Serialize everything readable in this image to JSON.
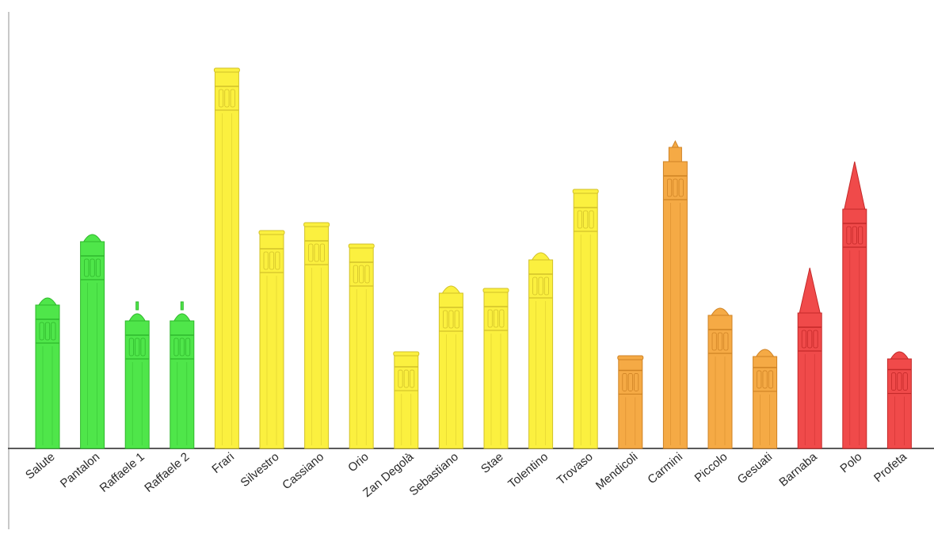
{
  "chart_data": {
    "type": "bar",
    "title": "",
    "xlabel": "",
    "ylabel": "",
    "categories": [
      "Salute",
      "Pantalon",
      "Raffaele 1",
      "Raffaele 2",
      "Frari",
      "Silvestro",
      "Cassiano",
      "Orio",
      "Zan Degolà",
      "Sebastiano",
      "Stae",
      "Tolentino",
      "Trovaso",
      "Mendicoli",
      "Carmini",
      "Piccolo",
      "Gesuati",
      "Barnaba",
      "Polo",
      "Profeta"
    ],
    "values": [
      195,
      275,
      185,
      185,
      480,
      275,
      285,
      258,
      122,
      210,
      202,
      252,
      327,
      117,
      388,
      182,
      130,
      228,
      362,
      127
    ],
    "tower_shapes": [
      "dome",
      "dome",
      "spire-dome",
      "spire-dome",
      "flat",
      "flat",
      "flat",
      "flat",
      "flat",
      "dome",
      "flat",
      "dome",
      "flat",
      "flat",
      "spire",
      "dome",
      "dome",
      "cone",
      "cone",
      "dome"
    ],
    "colors": [
      "#4fe64a",
      "#4fe64a",
      "#4fe64a",
      "#4fe64a",
      "#fbf03f",
      "#fbf03f",
      "#fbf03f",
      "#fbf03f",
      "#fbf03f",
      "#fbf03f",
      "#fbf03f",
      "#fbf03f",
      "#fbf03f",
      "#f5aa45",
      "#f5aa45",
      "#f5aa45",
      "#f5aa45",
      "#f04a4a",
      "#f04a4a",
      "#f04a4a"
    ],
    "stroke_colors": [
      "#2fb82c",
      "#2fb82c",
      "#2fb82c",
      "#2fb82c",
      "#d2c12a",
      "#d2c12a",
      "#d2c12a",
      "#d2c12a",
      "#d2c12a",
      "#d2c12a",
      "#d2c12a",
      "#d2c12a",
      "#d2c12a",
      "#cf8325",
      "#cf8325",
      "#cf8325",
      "#cf8325",
      "#c42929",
      "#c42929",
      "#c42929"
    ],
    "ylim": [
      0,
      520
    ],
    "grid": false,
    "legend": "none"
  }
}
